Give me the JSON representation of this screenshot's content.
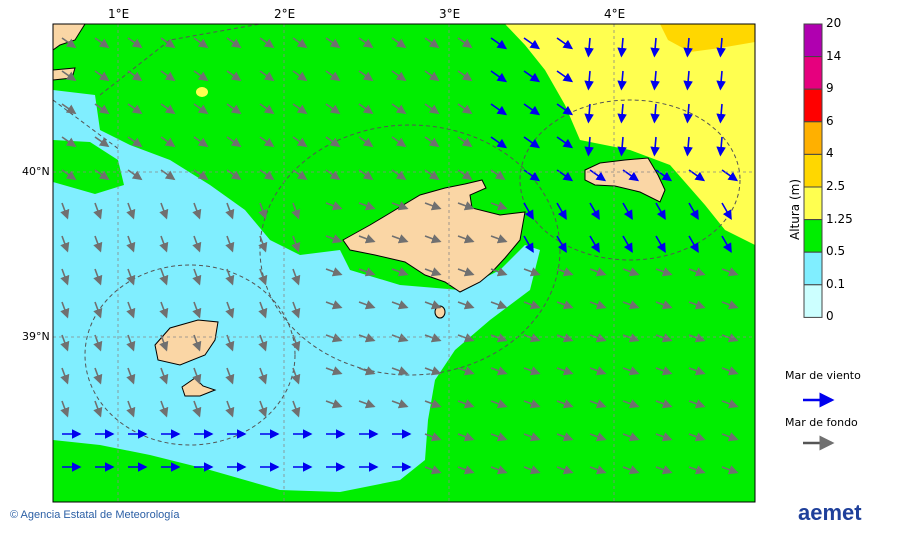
{
  "map": {
    "lon_labels": [
      "1°E",
      "2°E",
      "3°E",
      "4°E"
    ],
    "lat_labels": [
      "40°N",
      "39°N"
    ],
    "colors": {
      "land": "#fad6a5",
      "sea_green": "#00ee00",
      "sea_cyan": "#80eeff",
      "sea_yellow": "#ffff50",
      "sea_orange": "#ffd700",
      "wind_sea": "#0000ee",
      "swell": "#707070"
    }
  },
  "legend": {
    "title": "Altura (m)",
    "levels": [
      "20",
      "14",
      "9",
      "6",
      "4",
      "2.5",
      "1.25",
      "0.5",
      "0.1",
      "0"
    ],
    "colors": [
      "#b000b0",
      "#e6007e",
      "#ff0000",
      "#ffb000",
      "#ffd700",
      "#ffff50",
      "#00ee00",
      "#80eeff",
      "#ccffff"
    ],
    "wind_sea_label": "Mar de viento",
    "swell_label": "Mar de fondo"
  },
  "footer": {
    "credit": "© Agencia Estatal de Meteorología",
    "logo": "aemet"
  }
}
